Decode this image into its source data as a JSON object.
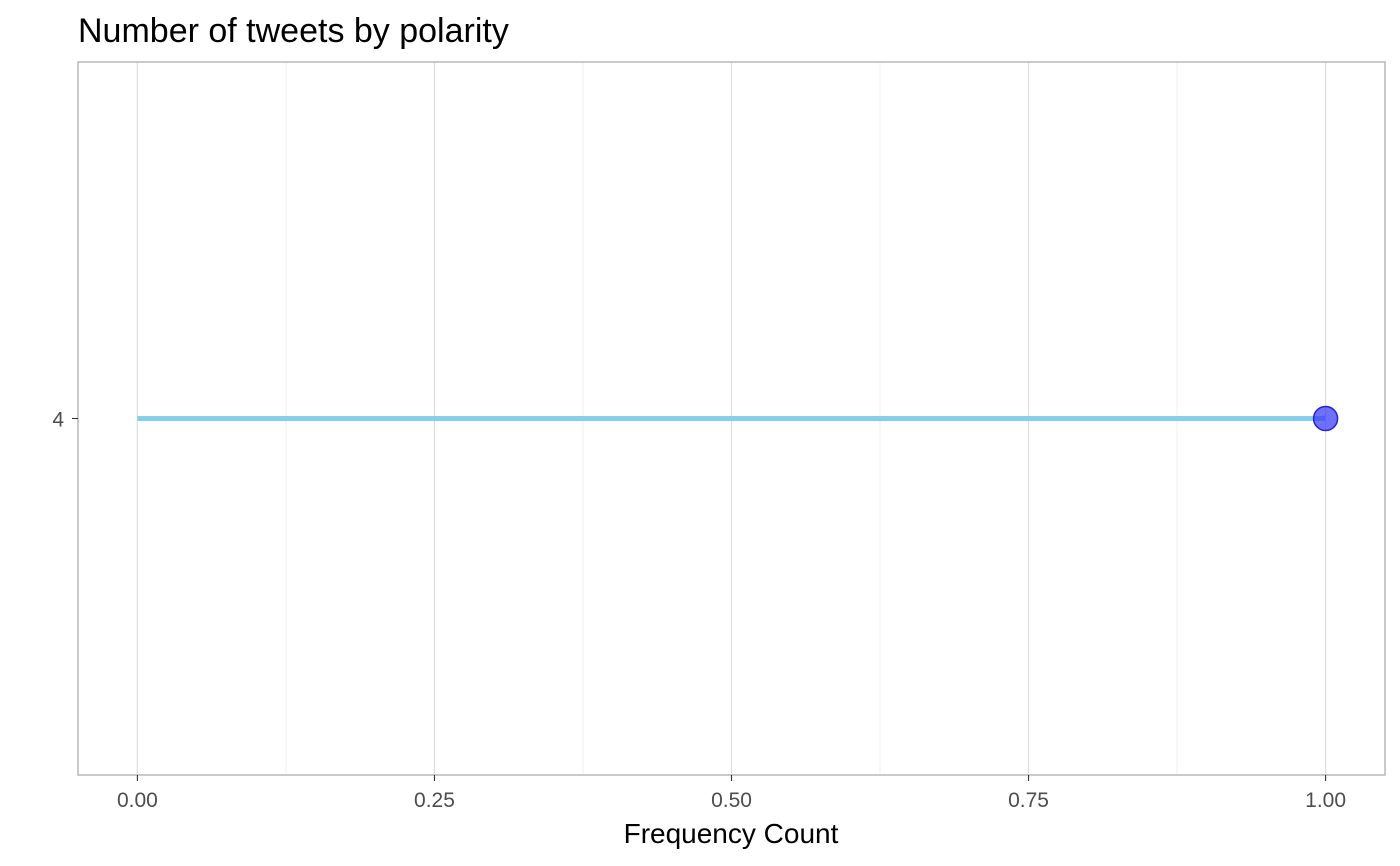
{
  "chart_data": {
    "type": "lollipop",
    "title": "Number of tweets by polarity",
    "xlabel": "Frequency Count",
    "ylabel": "",
    "orientation": "horizontal",
    "categories": [
      "4"
    ],
    "values": [
      1.0
    ],
    "xlim": [
      -0.05,
      1.05
    ],
    "x_ticks": [
      0.0,
      0.25,
      0.5,
      0.75,
      1.0
    ],
    "x_tick_labels": [
      "0.00",
      "0.25",
      "0.50",
      "0.75",
      "1.00"
    ],
    "x_minor_ticks": [
      0.125,
      0.375,
      0.625,
      0.875
    ],
    "grid": "vertical",
    "legend": "none",
    "colors": {
      "stem": "#87ceeb",
      "point_fill": "#3333ff",
      "point_stroke": "#2222dd",
      "grid_major": "#dedede",
      "grid_minor": "#efefef",
      "panel_border": "#b3b3b3",
      "tick_mark": "#333333"
    }
  }
}
